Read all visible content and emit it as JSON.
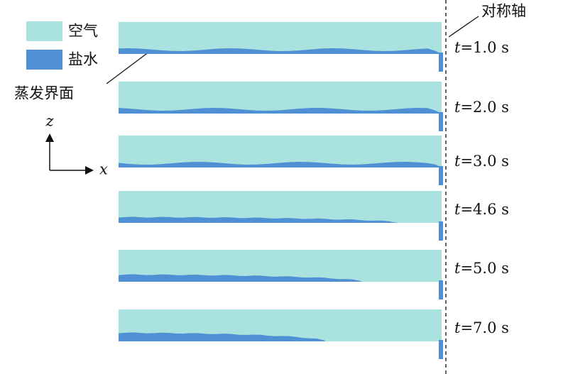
{
  "legend": {
    "items": [
      {
        "label": "空气"
      },
      {
        "label": "盐水"
      }
    ]
  },
  "interface_label": "蒸发界面",
  "axis_label": "对称轴",
  "axes": {
    "z": "z",
    "x": "x"
  },
  "time_symbol": "t",
  "panels": [
    {
      "time": "=1.0 s"
    },
    {
      "time": "=2.0 s"
    },
    {
      "time": "=3.0 s"
    },
    {
      "time": "=4.6 s"
    },
    {
      "time": "=5.0 s"
    },
    {
      "time": "=7.0 s"
    }
  ]
}
